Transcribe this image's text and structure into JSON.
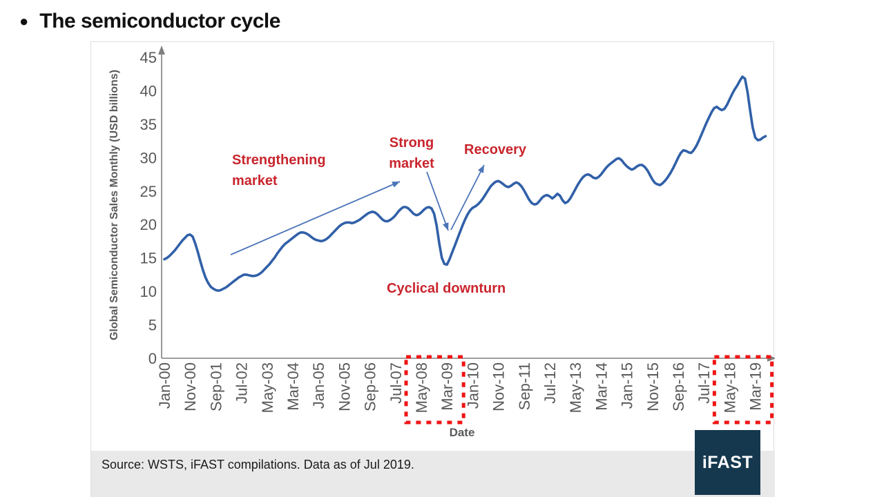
{
  "page": {
    "bullet": "●",
    "title": "The semiconductor cycle"
  },
  "colors": {
    "line": "#3160a8",
    "arrow": "#4a74b8",
    "annotation_red": "#c9252d",
    "highlight_red": "#ef1515",
    "axis_gray": "#7f7f7f",
    "tick_gray": "#595959",
    "logo_navy": "#16384e",
    "footer_gray": "#e9e9e9"
  },
  "chart_data": {
    "type": "line",
    "title": "",
    "xlabel": "Date",
    "ylabel": "Global Semiconductor Sales Monthly (USD billions)",
    "ylim": [
      0,
      45
    ],
    "ytick_step": 5,
    "grid": false,
    "legend": "none",
    "x_tick_every_months": 10,
    "x_tick_labels": [
      "Jan-00",
      "Nov-00",
      "Sep-01",
      "Jul-02",
      "May-03",
      "Mar-04",
      "Jan-05",
      "Nov-05",
      "Sep-06",
      "Jul-07",
      "May-08",
      "Mar-09",
      "Jan-10",
      "Nov-10",
      "Sep-11",
      "Jul-12",
      "May-13",
      "Mar-14",
      "Jan-15",
      "Nov-15",
      "Sep-16",
      "Jul-17",
      "May-18",
      "Mar-19"
    ],
    "series": [
      {
        "name": "Global Semiconductor Sales Monthly (USD billions)",
        "start": "Jan-2000",
        "frequency": "monthly",
        "values": [
          14.8,
          15.0,
          15.3,
          15.7,
          16.1,
          16.6,
          17.1,
          17.6,
          18.0,
          18.4,
          18.5,
          18.2,
          17.2,
          15.9,
          14.5,
          13.2,
          12.1,
          11.3,
          10.7,
          10.4,
          10.2,
          10.1,
          10.2,
          10.4,
          10.6,
          10.9,
          11.2,
          11.5,
          11.8,
          12.1,
          12.3,
          12.5,
          12.5,
          12.4,
          12.3,
          12.3,
          12.4,
          12.6,
          12.9,
          13.3,
          13.7,
          14.1,
          14.6,
          15.1,
          15.7,
          16.2,
          16.7,
          17.1,
          17.4,
          17.7,
          18.0,
          18.3,
          18.6,
          18.8,
          18.8,
          18.7,
          18.5,
          18.2,
          17.9,
          17.7,
          17.6,
          17.5,
          17.6,
          17.8,
          18.1,
          18.5,
          18.9,
          19.3,
          19.7,
          20.0,
          20.2,
          20.3,
          20.3,
          20.2,
          20.3,
          20.5,
          20.7,
          21.0,
          21.3,
          21.6,
          21.8,
          21.9,
          21.8,
          21.5,
          21.1,
          20.7,
          20.5,
          20.5,
          20.7,
          21.0,
          21.4,
          21.9,
          22.3,
          22.6,
          22.6,
          22.4,
          22.0,
          21.6,
          21.4,
          21.5,
          21.8,
          22.2,
          22.5,
          22.6,
          22.4,
          21.6,
          19.8,
          17.2,
          15.0,
          14.1,
          14.0,
          14.8,
          15.8,
          16.8,
          17.8,
          18.8,
          19.8,
          20.7,
          21.5,
          22.1,
          22.5,
          22.7,
          23.0,
          23.4,
          23.9,
          24.5,
          25.1,
          25.7,
          26.1,
          26.4,
          26.5,
          26.3,
          26.0,
          25.7,
          25.6,
          25.8,
          26.1,
          26.3,
          26.1,
          25.7,
          25.1,
          24.4,
          23.7,
          23.2,
          23.0,
          23.1,
          23.5,
          24.0,
          24.3,
          24.4,
          24.2,
          23.9,
          24.2,
          24.6,
          24.3,
          23.6,
          23.2,
          23.4,
          23.9,
          24.6,
          25.3,
          26.0,
          26.6,
          27.1,
          27.4,
          27.5,
          27.3,
          27.0,
          26.9,
          27.1,
          27.5,
          28.0,
          28.5,
          28.9,
          29.2,
          29.5,
          29.8,
          29.9,
          29.6,
          29.1,
          28.7,
          28.4,
          28.2,
          28.4,
          28.7,
          28.9,
          28.9,
          28.6,
          28.1,
          27.4,
          26.7,
          26.2,
          26.0,
          25.9,
          26.2,
          26.6,
          27.1,
          27.7,
          28.4,
          29.2,
          30.0,
          30.7,
          31.1,
          31.0,
          30.8,
          30.7,
          31.1,
          31.7,
          32.5,
          33.4,
          34.3,
          35.2,
          36.0,
          36.8,
          37.4,
          37.6,
          37.3,
          37.1,
          37.3,
          37.9,
          38.7,
          39.5,
          40.2,
          40.8,
          41.5,
          42.1,
          41.8,
          39.8,
          37.0,
          34.5,
          33.0,
          32.6,
          32.7,
          33.0,
          33.2
        ]
      }
    ],
    "annotations": [
      {
        "text": "Strengthening market"
      },
      {
        "text": "Strong market"
      },
      {
        "text": "Recovery"
      },
      {
        "text": "Cyclical downturn"
      }
    ],
    "annotation_arrows": [
      {
        "name": "strengthening-trend-arrow",
        "x1": 202,
        "y1": 308,
        "x2": 447,
        "y2": 202
      },
      {
        "name": "downturn-arrow",
        "x1": 486,
        "y1": 188,
        "x2": 517,
        "y2": 273
      },
      {
        "name": "recovery-arrow",
        "x1": 521,
        "y1": 272,
        "x2": 569,
        "y2": 178
      }
    ],
    "highlight_boxes": [
      {
        "labels": [
          "May-08",
          "Mar-09"
        ],
        "from_month": 100,
        "to_month": 110
      },
      {
        "labels": [
          "May-18",
          "Mar-19"
        ],
        "from_month": 220,
        "to_month": 230
      }
    ]
  },
  "footer": {
    "source": "Source: WSTS, iFAST compilations. Data as of Jul 2019.",
    "logo": "iFAST"
  }
}
